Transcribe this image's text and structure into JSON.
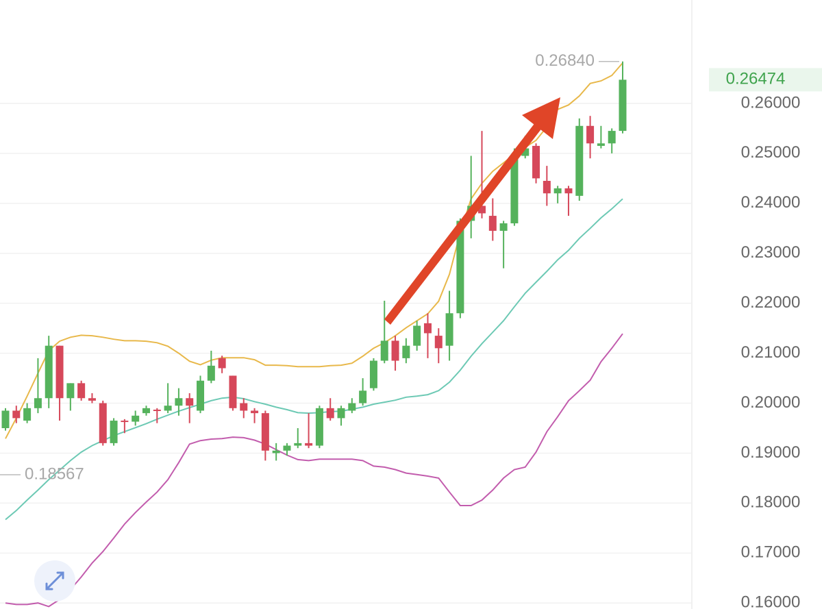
{
  "chart_data": {
    "type": "candlestick",
    "ylim": [
      0.1588,
      0.2807
    ],
    "yticks": [
      {
        "value": 0.16,
        "label": "0.16000"
      },
      {
        "value": 0.17,
        "label": "0.17000"
      },
      {
        "value": 0.18,
        "label": "0.18000"
      },
      {
        "value": 0.19,
        "label": "0.19000"
      },
      {
        "value": 0.2,
        "label": "0.20000"
      },
      {
        "value": 0.21,
        "label": "0.21000"
      },
      {
        "value": 0.22,
        "label": "0.22000"
      },
      {
        "value": 0.23,
        "label": "0.23000"
      },
      {
        "value": 0.24,
        "label": "0.24000"
      },
      {
        "value": 0.25,
        "label": "0.25000"
      },
      {
        "value": 0.26,
        "label": "0.26000"
      }
    ],
    "grid": true,
    "up_color": "#55b25c",
    "down_color": "#d6485a",
    "open": [
      0.195,
      0.1985,
      0.1965,
      0.199,
      0.201,
      0.2115,
      0.201,
      0.204,
      0.201,
      0.2,
      0.192,
      0.1965,
      0.1963,
      0.198,
      0.1987,
      0.1985,
      0.1995,
      0.201,
      0.1985,
      0.2045,
      0.209,
      0.2055,
      0.2,
      0.1985,
      0.198,
      0.19,
      0.1905,
      0.1915,
      0.192,
      0.1915,
      0.199,
      0.197,
      0.1985,
      0.2,
      0.203,
      0.2085,
      0.2125,
      0.209,
      0.2115,
      0.216,
      0.2135,
      0.2115,
      0.218,
      0.2365,
      0.2395,
      0.2375,
      0.2345,
      0.236,
      0.2495,
      0.2515,
      0.2445,
      0.242,
      0.243,
      0.2415,
      0.2555,
      0.2515,
      0.252,
      0.2545
    ],
    "high": [
      0.199,
      0.1995,
      0.2,
      0.209,
      0.2135,
      0.2115,
      0.204,
      0.2045,
      0.202,
      0.2005,
      0.197,
      0.1968,
      0.1985,
      0.1995,
      0.199,
      0.204,
      0.203,
      0.202,
      0.2055,
      0.2105,
      0.2095,
      0.2055,
      0.201,
      0.199,
      0.1985,
      0.192,
      0.192,
      0.195,
      0.198,
      0.1995,
      0.201,
      0.1995,
      0.201,
      0.205,
      0.209,
      0.2205,
      0.2135,
      0.213,
      0.2165,
      0.218,
      0.215,
      0.2225,
      0.237,
      0.2495,
      0.2545,
      0.241,
      0.2365,
      0.251,
      0.2535,
      0.252,
      0.2475,
      0.2435,
      0.2435,
      0.257,
      0.2575,
      0.2555,
      0.255,
      0.2684
    ],
    "low": [
      0.1945,
      0.196,
      0.196,
      0.198,
      0.199,
      0.1965,
      0.1985,
      0.2005,
      0.2,
      0.1915,
      0.1915,
      0.194,
      0.1955,
      0.1975,
      0.196,
      0.198,
      0.1975,
      0.196,
      0.198,
      0.204,
      0.206,
      0.1985,
      0.197,
      0.196,
      0.1885,
      0.1885,
      0.1895,
      0.191,
      0.191,
      0.191,
      0.1965,
      0.1955,
      0.198,
      0.1995,
      0.2025,
      0.208,
      0.2065,
      0.208,
      0.2105,
      0.209,
      0.208,
      0.2085,
      0.217,
      0.233,
      0.237,
      0.2325,
      0.227,
      0.2355,
      0.249,
      0.244,
      0.2395,
      0.24,
      0.2375,
      0.2405,
      0.249,
      0.251,
      0.25,
      0.254
    ],
    "close": [
      0.1985,
      0.197,
      0.199,
      0.201,
      0.2115,
      0.201,
      0.204,
      0.201,
      0.2005,
      0.192,
      0.1965,
      0.1963,
      0.1975,
      0.199,
      0.1985,
      0.1995,
      0.201,
      0.1995,
      0.2045,
      0.2075,
      0.207,
      0.199,
      0.1985,
      0.198,
      0.1905,
      0.1905,
      0.1915,
      0.192,
      0.1915,
      0.199,
      0.197,
      0.199,
      0.2,
      0.2025,
      0.2085,
      0.2125,
      0.2085,
      0.2115,
      0.2155,
      0.214,
      0.211,
      0.218,
      0.2365,
      0.2395,
      0.238,
      0.2345,
      0.236,
      0.2495,
      0.251,
      0.245,
      0.242,
      0.243,
      0.242,
      0.2555,
      0.252,
      0.252,
      0.2545,
      0.26474
    ],
    "lines": [
      {
        "color": "#e8b84a",
        "values": [
          0.1929,
          0.197,
          0.2014,
          0.206,
          0.2105,
          0.2124,
          0.2132,
          0.2136,
          0.2135,
          0.2132,
          0.2128,
          0.2125,
          0.2125,
          0.2124,
          0.2121,
          0.2114,
          0.21,
          0.2084,
          0.2077,
          0.2086,
          0.2091,
          0.2091,
          0.2091,
          0.2087,
          0.2076,
          0.2076,
          0.2075,
          0.2073,
          0.2073,
          0.2073,
          0.2075,
          0.2076,
          0.208,
          0.2094,
          0.211,
          0.2121,
          0.2135,
          0.2151,
          0.2165,
          0.2179,
          0.2204,
          0.2258,
          0.2341,
          0.2409,
          0.244,
          0.2464,
          0.2481,
          0.2498,
          0.2512,
          0.2526,
          0.2553,
          0.2588,
          0.2597,
          0.2615,
          0.264,
          0.2645,
          0.2656,
          0.2681
        ]
      },
      {
        "color": "#6cc9b4",
        "values": [
          0.1767,
          0.1785,
          0.1806,
          0.1826,
          0.1847,
          0.1866,
          0.1885,
          0.1902,
          0.1915,
          0.1925,
          0.1935,
          0.1943,
          0.1951,
          0.1959,
          0.1968,
          0.1976,
          0.1984,
          0.1991,
          0.1998,
          0.2005,
          0.201,
          0.2012,
          0.2009,
          0.2003,
          0.1998,
          0.1992,
          0.1987,
          0.1981,
          0.198,
          0.1981,
          0.1983,
          0.1984,
          0.1988,
          0.1992,
          0.1998,
          0.2002,
          0.2006,
          0.2012,
          0.2014,
          0.2017,
          0.2025,
          0.2042,
          0.2066,
          0.2094,
          0.2119,
          0.2142,
          0.2165,
          0.2193,
          0.222,
          0.2242,
          0.2264,
          0.2287,
          0.2306,
          0.233,
          0.235,
          0.2371,
          0.2389,
          0.2409
        ]
      },
      {
        "color": "#c25cad",
        "values": [
          0.16,
          0.1597,
          0.1597,
          0.16,
          0.1593,
          0.1607,
          0.1627,
          0.1652,
          0.168,
          0.1703,
          0.173,
          0.1758,
          0.1781,
          0.1802,
          0.1822,
          0.1847,
          0.1881,
          0.1918,
          0.1925,
          0.1928,
          0.1929,
          0.1932,
          0.1931,
          0.1926,
          0.1918,
          0.1907,
          0.1896,
          0.1887,
          0.1885,
          0.1888,
          0.1888,
          0.1888,
          0.1888,
          0.1885,
          0.1874,
          0.1872,
          0.1867,
          0.186,
          0.1857,
          0.1854,
          0.185,
          0.1822,
          0.1795,
          0.1795,
          0.1806,
          0.1826,
          0.185,
          0.1867,
          0.1872,
          0.1902,
          0.1943,
          0.1973,
          0.2005,
          0.2025,
          0.2046,
          0.2083,
          0.211,
          0.2139
        ]
      }
    ],
    "high_label": {
      "value": 0.2684,
      "label": "0.26840"
    },
    "low_label": {
      "value": 0.18567,
      "label": "0.18567"
    },
    "last_price": {
      "value": 0.26474,
      "label": "0.26474"
    }
  }
}
